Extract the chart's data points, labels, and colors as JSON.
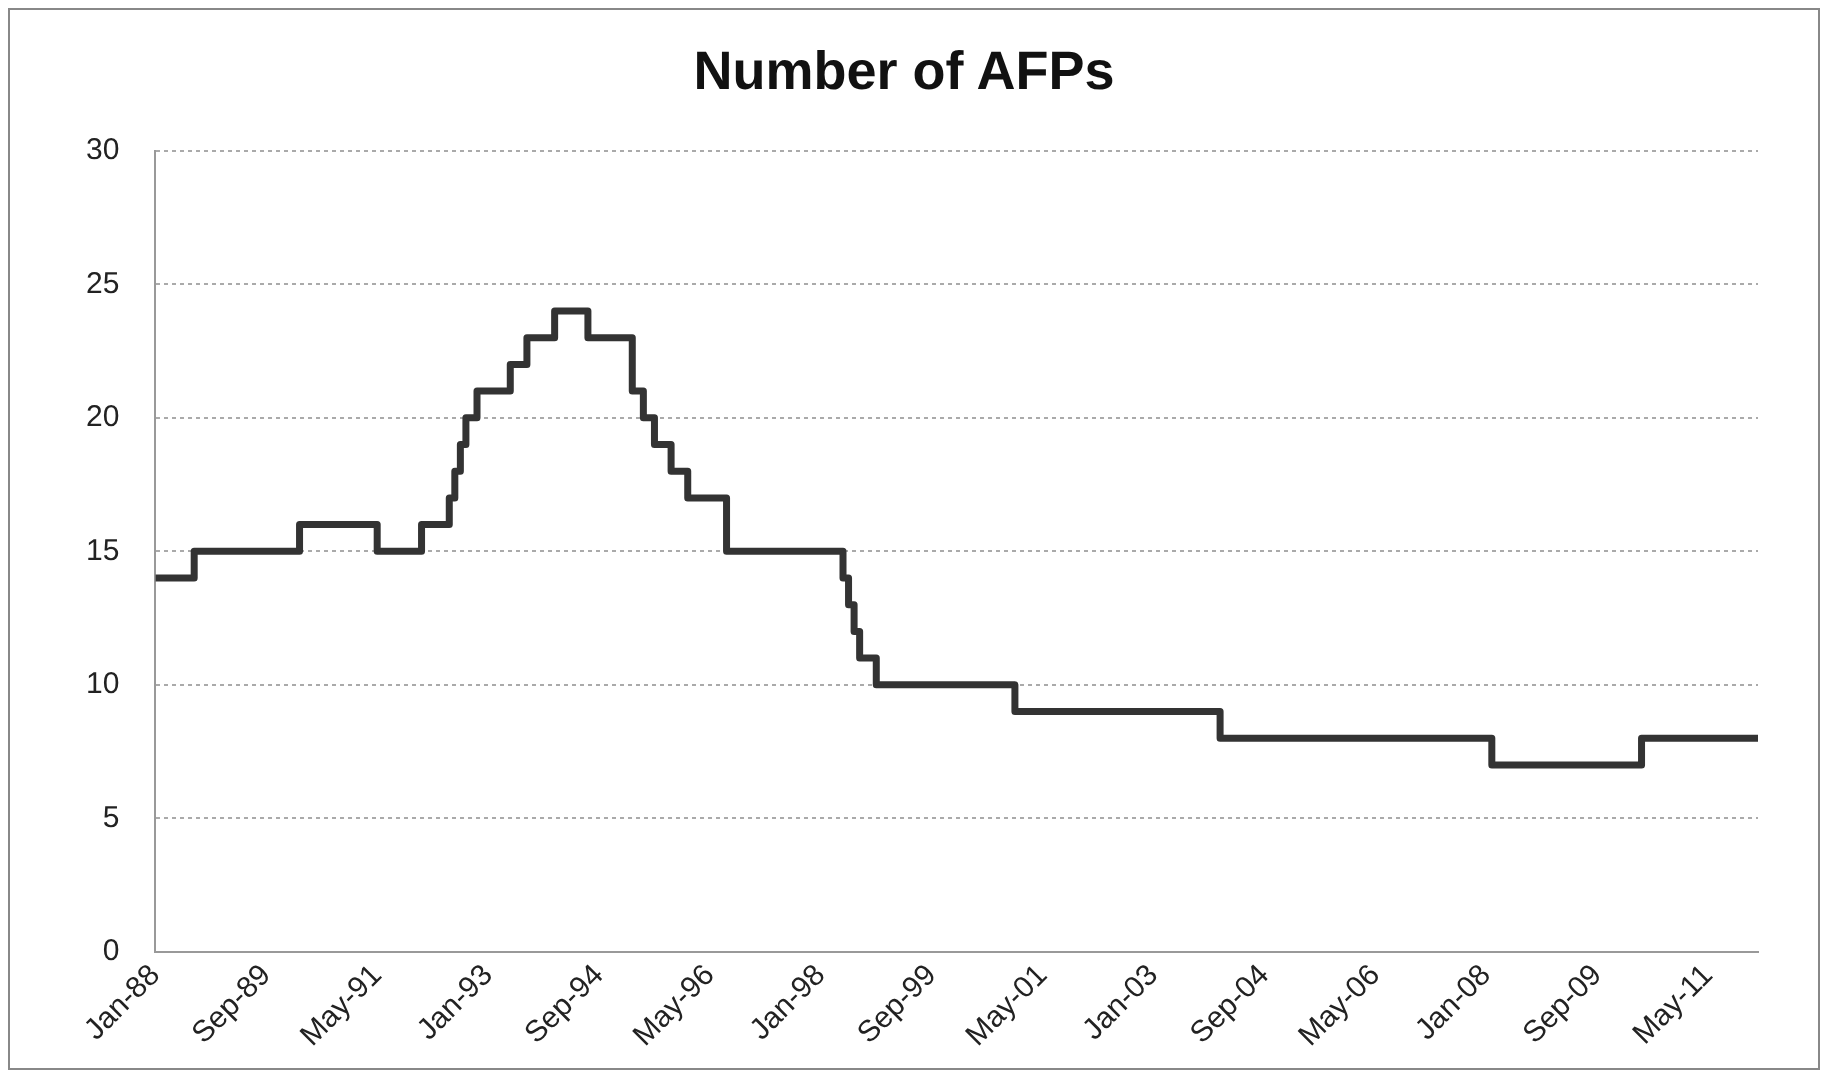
{
  "chart_data": {
    "type": "step",
    "title": "Number of AFPs",
    "x": [
      "1988-01",
      "1988-08",
      "1990-03",
      "1991-05",
      "1992-01",
      "1992-06",
      "1992-07",
      "1992-08",
      "1992-09",
      "1992-11",
      "1993-05",
      "1993-08",
      "1994-01",
      "1994-07",
      "1995-03",
      "1995-05",
      "1995-07",
      "1995-10",
      "1996-01",
      "1996-08",
      "1998-05",
      "1998-06",
      "1998-07",
      "1998-08",
      "1998-11",
      "2000-12",
      "2004-01",
      "2008-02",
      "2010-05",
      "2012-02"
    ],
    "series": [
      {
        "color": "#333333",
        "values": [
          14,
          15,
          16,
          15,
          16,
          17,
          18,
          19,
          20,
          21,
          22,
          23,
          24,
          23,
          21,
          20,
          19,
          18,
          17,
          15,
          14,
          13,
          12,
          11,
          10,
          9,
          8,
          7,
          8,
          8
        ]
      }
    ],
    "xlim": [
      "1988-01",
      "2012-02"
    ],
    "xticks": [
      {
        "value": "1988-01",
        "label": "Jan-88"
      },
      {
        "value": "1989-09",
        "label": "Sep-89"
      },
      {
        "value": "1991-05",
        "label": "May-91"
      },
      {
        "value": "1993-01",
        "label": "Jan-93"
      },
      {
        "value": "1994-09",
        "label": "Sep-94"
      },
      {
        "value": "1996-05",
        "label": "May-96"
      },
      {
        "value": "1998-01",
        "label": "Jan-98"
      },
      {
        "value": "1999-09",
        "label": "Sep-99"
      },
      {
        "value": "2001-05",
        "label": "May-01"
      },
      {
        "value": "2003-01",
        "label": "Jan-03"
      },
      {
        "value": "2004-09",
        "label": "Sep-04"
      },
      {
        "value": "2006-05",
        "label": "May-06"
      },
      {
        "value": "2008-01",
        "label": "Jan-08"
      },
      {
        "value": "2009-09",
        "label": "Sep-09"
      },
      {
        "value": "2011-05",
        "label": "May-11"
      }
    ],
    "ylim": [
      0,
      30
    ],
    "yticks": [
      0,
      5,
      10,
      15,
      20,
      25,
      30
    ],
    "grid": "y",
    "legend": false,
    "marker": "none",
    "line_style": "solid"
  }
}
